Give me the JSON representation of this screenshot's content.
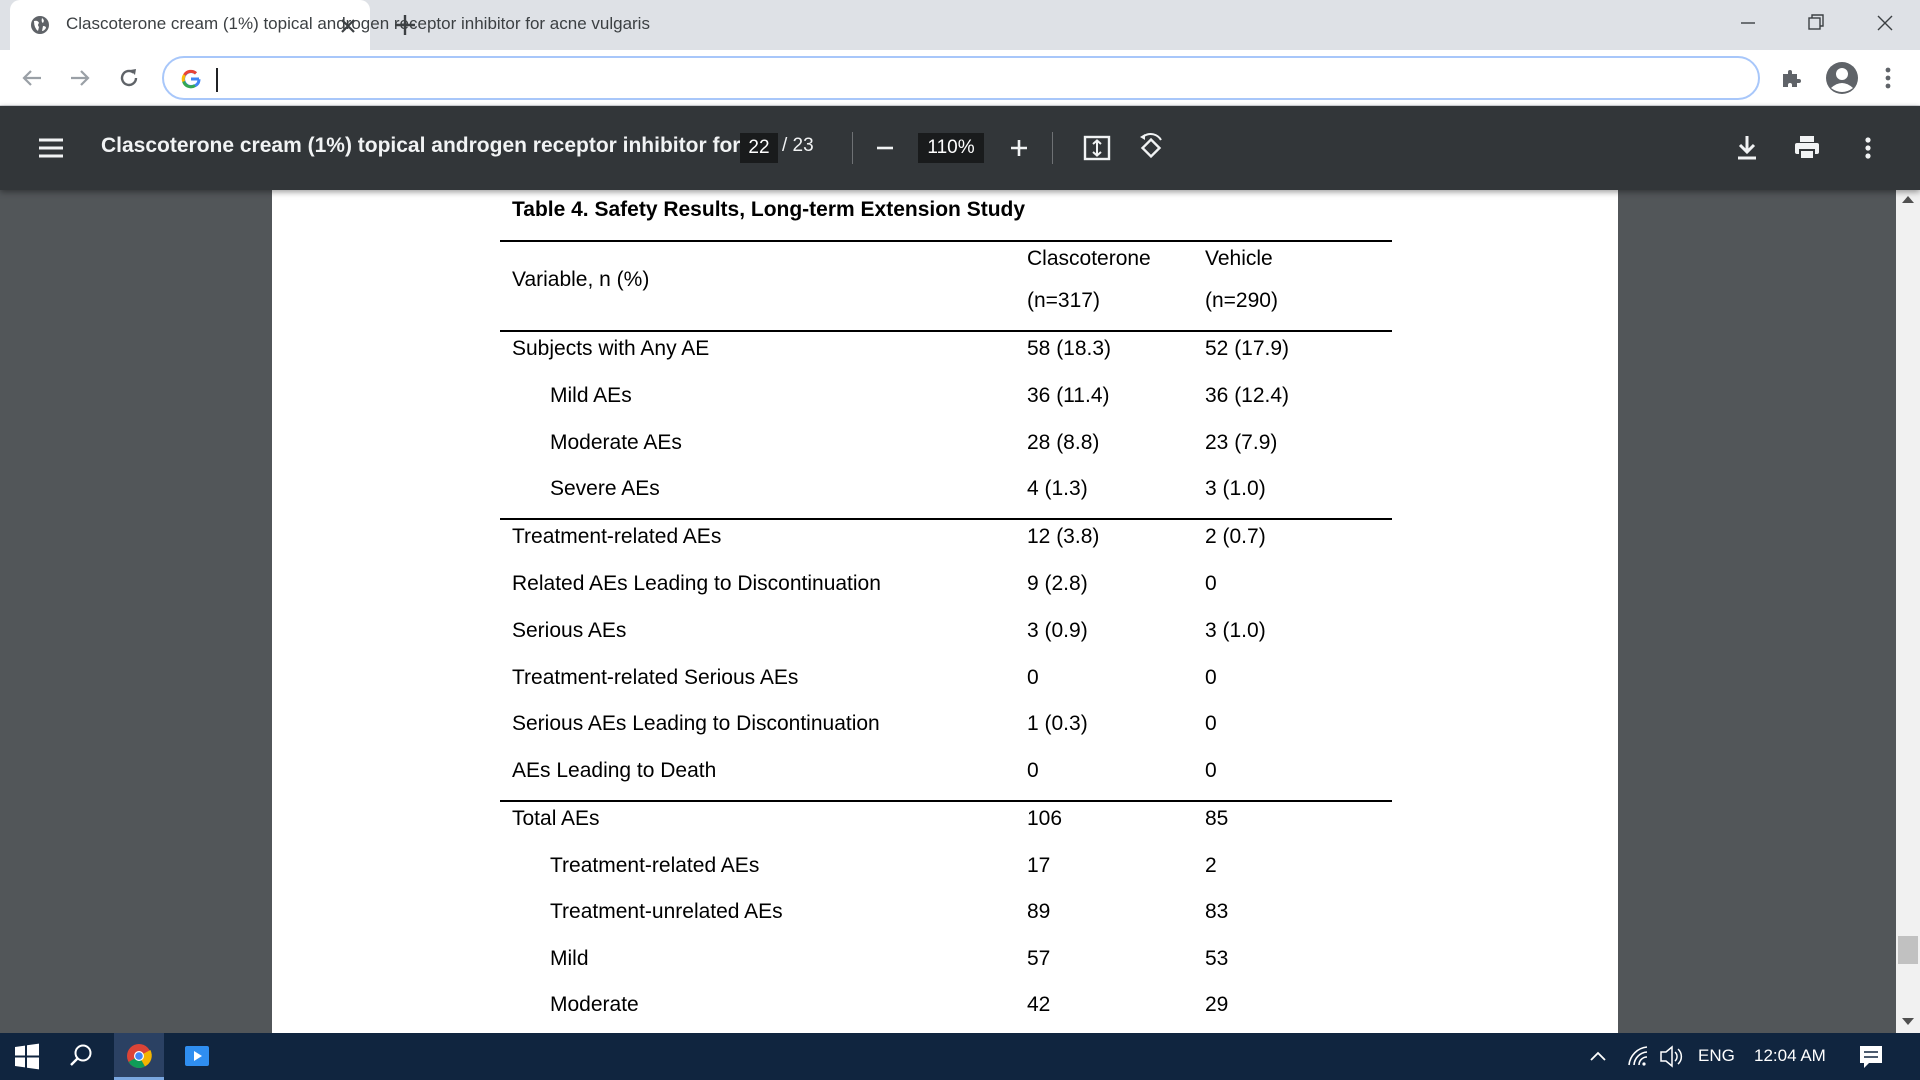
{
  "browser": {
    "tab_title": "Clascoterone cream (1%) topical androgen receptor inhibitor for acne vulgaris",
    "address_value": "",
    "accent_color": "#a8c7fa"
  },
  "pdf_toolbar": {
    "doc_title": "Clascoterone cream (1%) topical androgen receptor inhibitor for...",
    "page_current": "22",
    "page_total": "/ 23",
    "zoom": "110%",
    "icons": [
      "menu-icon",
      "zoom-out-icon",
      "zoom-in-icon",
      "fit-page-icon",
      "rotate-icon",
      "download-icon",
      "print-icon",
      "more-vert-icon"
    ]
  },
  "table": {
    "title": "Table 4. Safety Results, Long-term Extension Study",
    "header": {
      "variable": "Variable, n (%)",
      "col1_name": "Clascoterone",
      "col1_n": "(n=317)",
      "col2_name": "Vehicle",
      "col2_n": "(n=290)"
    },
    "rows": [
      {
        "label": "Subjects with Any AE",
        "indent": false,
        "c1": "58 (18.3)",
        "c2": "52 (17.9)"
      },
      {
        "label": "Mild AEs",
        "indent": true,
        "c1": "36 (11.4)",
        "c2": "36 (12.4)"
      },
      {
        "label": "Moderate AEs",
        "indent": true,
        "c1": "28 (8.8)",
        "c2": "23 (7.9)"
      },
      {
        "label": "Severe AEs",
        "indent": true,
        "c1": "4 (1.3)",
        "c2": "3 (1.0)"
      },
      {
        "label": "Treatment-related AEs",
        "indent": false,
        "c1": "12 (3.8)",
        "c2": "2 (0.7)"
      },
      {
        "label": "Related AEs Leading to Discontinuation",
        "indent": false,
        "c1": "9 (2.8)",
        "c2": "0"
      },
      {
        "label": "Serious AEs",
        "indent": false,
        "c1": "3 (0.9)",
        "c2": "3 (1.0)"
      },
      {
        "label": "Treatment-related Serious AEs",
        "indent": false,
        "c1": "0",
        "c2": "0"
      },
      {
        "label": "Serious AEs Leading to Discontinuation",
        "indent": false,
        "c1": "1 (0.3)",
        "c2": "0"
      },
      {
        "label": "AEs Leading to Death",
        "indent": false,
        "c1": "0",
        "c2": "0"
      },
      {
        "label": "Total AEs",
        "indent": false,
        "c1": "106",
        "c2": "85"
      },
      {
        "label": "Treatment-related AEs",
        "indent": true,
        "c1": "17",
        "c2": "2"
      },
      {
        "label": "Treatment-unrelated AEs",
        "indent": true,
        "c1": "89",
        "c2": "83"
      },
      {
        "label": "Mild",
        "indent": true,
        "c1": "57",
        "c2": "53"
      },
      {
        "label": "Moderate",
        "indent": true,
        "c1": "42",
        "c2": "29"
      }
    ]
  },
  "taskbar": {
    "language": "ENG",
    "time": "12:04 AM",
    "icons": [
      "windows-start-icon",
      "search-icon",
      "chrome-icon",
      "media-player-icon",
      "chevron-up-icon",
      "wifi-icon",
      "volume-icon",
      "notification-icon"
    ]
  }
}
